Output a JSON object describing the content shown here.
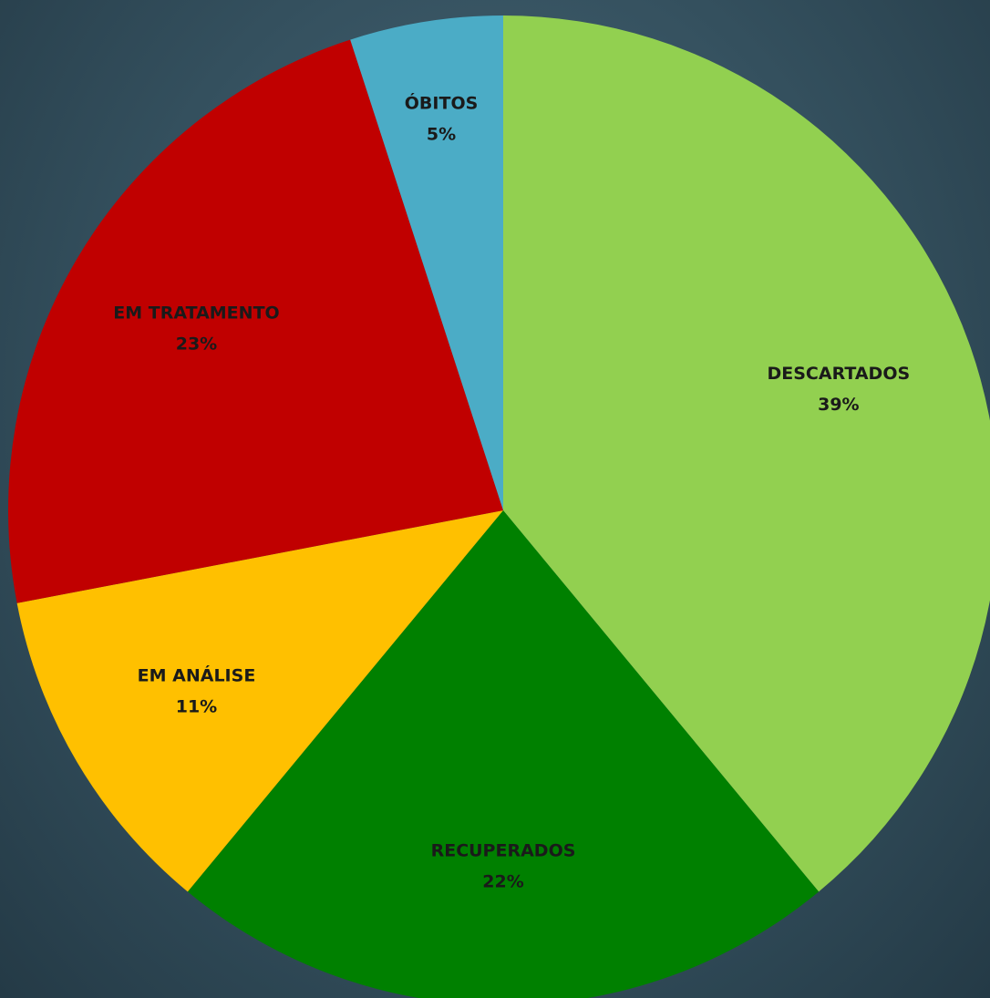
{
  "chart_data": {
    "type": "pie",
    "categories": [
      "DESCARTADOS",
      "RECUPERADOS",
      "EM ANÁLISE",
      "EM TRATAMENTO",
      "ÓBITOS"
    ],
    "values": [
      39,
      22,
      11,
      23,
      5
    ],
    "value_labels": [
      "39%",
      "22%",
      "11%",
      "23%",
      "5%"
    ],
    "colors": [
      "#92d050",
      "#008000",
      "#ffc000",
      "#c00000",
      "#4bacc6"
    ]
  }
}
